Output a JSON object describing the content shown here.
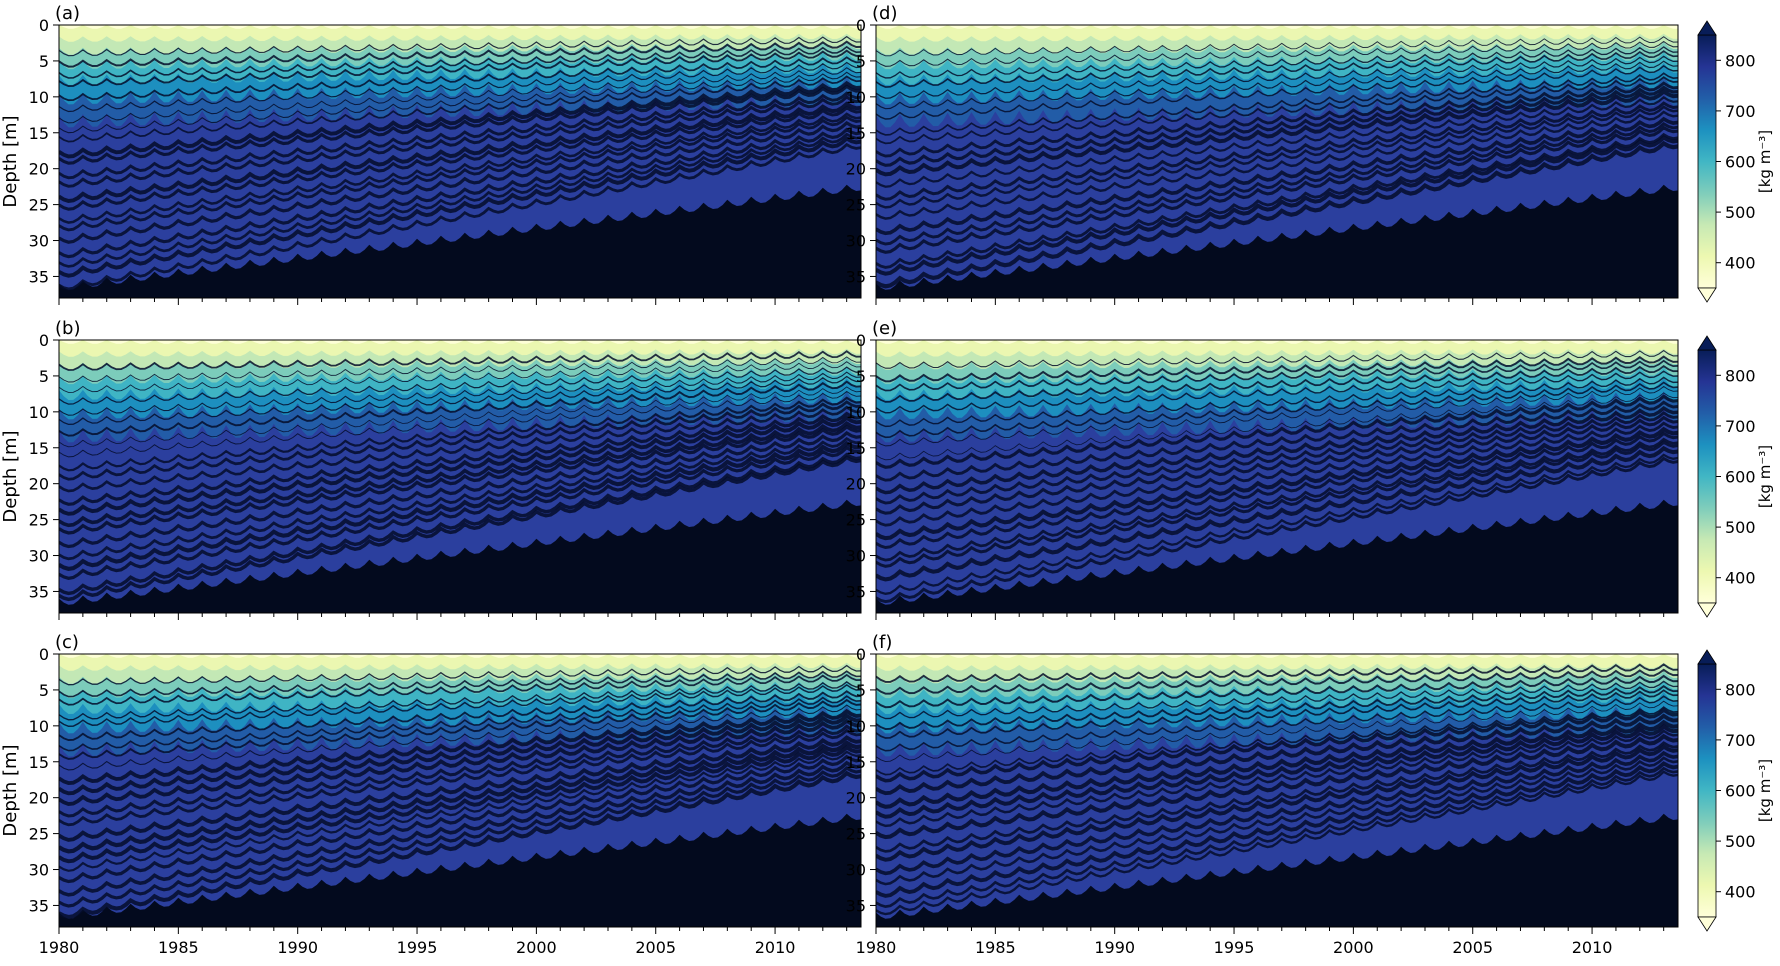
{
  "chart_data": {
    "type": "heatmap",
    "panels": [
      {
        "label": "(a)",
        "x_range": [
          1980,
          2013.6
        ],
        "y_range": [
          0,
          38
        ],
        "xlabel_ticks": false
      },
      {
        "label": "(b)",
        "x_range": [
          1980,
          2013.6
        ],
        "y_range": [
          0,
          38
        ],
        "xlabel_ticks": false
      },
      {
        "label": "(c)",
        "x_range": [
          1980,
          2013.6
        ],
        "y_range": [
          0,
          38
        ],
        "xlabel_ticks": true
      },
      {
        "label": "(d)",
        "x_range": [
          1980,
          2013.6
        ],
        "y_range": [
          0,
          38
        ],
        "xlabel_ticks": false
      },
      {
        "label": "(e)",
        "x_range": [
          1980,
          2013.6
        ],
        "y_range": [
          0,
          38
        ],
        "xlabel_ticks": false
      },
      {
        "label": "(f)",
        "x_range": [
          1980,
          2013.6
        ],
        "y_range": [
          0,
          38
        ],
        "xlabel_ticks": true
      }
    ],
    "ylabel": "Depth [m]",
    "yticks": [
      0,
      5,
      10,
      15,
      20,
      25,
      30,
      35
    ],
    "xticks": [
      1980,
      1985,
      1990,
      1995,
      2000,
      2005,
      2010
    ],
    "colorbar": {
      "label": "[kg m⁻³]",
      "ticks": [
        400,
        500,
        600,
        700,
        800
      ],
      "range": [
        350,
        850
      ],
      "extend": "both",
      "colormap": "YlGnBu",
      "colors": [
        "#ffffd9",
        "#edf8b1",
        "#c7e9b4",
        "#7fcdbb",
        "#41b6c4",
        "#1d91c0",
        "#225ea8",
        "#253494",
        "#081d58"
      ]
    },
    "grid": false
  }
}
